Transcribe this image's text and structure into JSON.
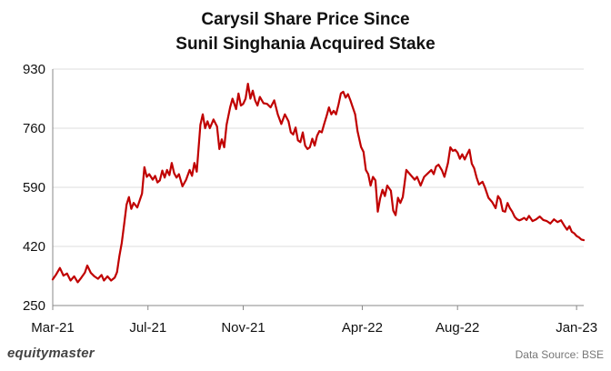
{
  "chart_data": {
    "type": "line",
    "title": [
      "Carysil Share Price Since",
      "Sunil Singhania Acquired Stake"
    ],
    "xlabel": "",
    "ylabel": "",
    "ylim": [
      250,
      930
    ],
    "yticks": [
      250,
      420,
      590,
      760,
      930
    ],
    "xticks": [
      {
        "label": "Mar-21",
        "month": 0
      },
      {
        "label": "Jul-21",
        "month": 4
      },
      {
        "label": "Nov-21",
        "month": 8
      },
      {
        "label": "Apr-22",
        "month": 13
      },
      {
        "label": "Aug-22",
        "month": 17
      },
      {
        "label": "Jan-23",
        "month": 22
      }
    ],
    "xrange_months": [
      0,
      22.3
    ],
    "series": [
      {
        "name": "Carysil Share Price",
        "color": "#c00000",
        "points": [
          [
            0.0,
            325
          ],
          [
            0.15,
            340
          ],
          [
            0.3,
            358
          ],
          [
            0.45,
            336
          ],
          [
            0.6,
            342
          ],
          [
            0.75,
            322
          ],
          [
            0.9,
            334
          ],
          [
            1.05,
            317
          ],
          [
            1.2,
            330
          ],
          [
            1.35,
            345
          ],
          [
            1.45,
            365
          ],
          [
            1.6,
            344
          ],
          [
            1.75,
            334
          ],
          [
            1.9,
            327
          ],
          [
            2.05,
            338
          ],
          [
            2.15,
            322
          ],
          [
            2.3,
            334
          ],
          [
            2.45,
            322
          ],
          [
            2.6,
            330
          ],
          [
            2.7,
            346
          ],
          [
            2.8,
            392
          ],
          [
            2.9,
            430
          ],
          [
            3.0,
            485
          ],
          [
            3.1,
            540
          ],
          [
            3.2,
            562
          ],
          [
            3.3,
            528
          ],
          [
            3.4,
            545
          ],
          [
            3.55,
            532
          ],
          [
            3.65,
            552
          ],
          [
            3.75,
            572
          ],
          [
            3.85,
            648
          ],
          [
            3.95,
            620
          ],
          [
            4.05,
            628
          ],
          [
            4.2,
            612
          ],
          [
            4.3,
            623
          ],
          [
            4.4,
            604
          ],
          [
            4.5,
            610
          ],
          [
            4.6,
            638
          ],
          [
            4.7,
            618
          ],
          [
            4.8,
            640
          ],
          [
            4.9,
            625
          ],
          [
            5.0,
            660
          ],
          [
            5.1,
            630
          ],
          [
            5.2,
            618
          ],
          [
            5.3,
            628
          ],
          [
            5.45,
            593
          ],
          [
            5.6,
            612
          ],
          [
            5.75,
            640
          ],
          [
            5.85,
            623
          ],
          [
            5.95,
            660
          ],
          [
            6.05,
            635
          ],
          [
            6.2,
            770
          ],
          [
            6.3,
            800
          ],
          [
            6.4,
            760
          ],
          [
            6.5,
            780
          ],
          [
            6.6,
            760
          ],
          [
            6.75,
            785
          ],
          [
            6.9,
            765
          ],
          [
            7.0,
            700
          ],
          [
            7.1,
            728
          ],
          [
            7.2,
            705
          ],
          [
            7.3,
            770
          ],
          [
            7.45,
            820
          ],
          [
            7.55,
            845
          ],
          [
            7.7,
            815
          ],
          [
            7.8,
            860
          ],
          [
            7.9,
            825
          ],
          [
            8.0,
            830
          ],
          [
            8.1,
            845
          ],
          [
            8.2,
            888
          ],
          [
            8.3,
            845
          ],
          [
            8.4,
            868
          ],
          [
            8.5,
            840
          ],
          [
            8.6,
            825
          ],
          [
            8.7,
            850
          ],
          [
            8.85,
            832
          ],
          [
            9.0,
            830
          ],
          [
            9.15,
            820
          ],
          [
            9.3,
            840
          ],
          [
            9.45,
            800
          ],
          [
            9.6,
            772
          ],
          [
            9.75,
            800
          ],
          [
            9.9,
            780
          ],
          [
            10.0,
            748
          ],
          [
            10.1,
            742
          ],
          [
            10.2,
            762
          ],
          [
            10.3,
            725
          ],
          [
            10.4,
            720
          ],
          [
            10.5,
            748
          ],
          [
            10.6,
            710
          ],
          [
            10.7,
            700
          ],
          [
            10.8,
            705
          ],
          [
            10.9,
            730
          ],
          [
            11.0,
            710
          ],
          [
            11.1,
            738
          ],
          [
            11.2,
            752
          ],
          [
            11.3,
            748
          ],
          [
            11.4,
            772
          ],
          [
            11.5,
            795
          ],
          [
            11.6,
            820
          ],
          [
            11.7,
            800
          ],
          [
            11.8,
            810
          ],
          [
            11.9,
            800
          ],
          [
            12.0,
            828
          ],
          [
            12.1,
            860
          ],
          [
            12.2,
            865
          ],
          [
            12.3,
            848
          ],
          [
            12.4,
            858
          ],
          [
            12.5,
            840
          ],
          [
            12.6,
            820
          ],
          [
            12.7,
            800
          ],
          [
            12.8,
            752
          ],
          [
            12.95,
            706
          ],
          [
            13.05,
            692
          ],
          [
            13.15,
            640
          ],
          [
            13.25,
            628
          ],
          [
            13.35,
            595
          ],
          [
            13.45,
            620
          ],
          [
            13.55,
            610
          ],
          [
            13.65,
            520
          ],
          [
            13.75,
            558
          ],
          [
            13.85,
            583
          ],
          [
            13.95,
            565
          ],
          [
            14.05,
            595
          ],
          [
            14.2,
            580
          ],
          [
            14.3,
            523
          ],
          [
            14.4,
            510
          ],
          [
            14.5,
            560
          ],
          [
            14.6,
            545
          ],
          [
            14.7,
            562
          ],
          [
            14.85,
            640
          ],
          [
            15.0,
            628
          ],
          [
            15.1,
            620
          ],
          [
            15.2,
            612
          ],
          [
            15.3,
            620
          ],
          [
            15.45,
            595
          ],
          [
            15.6,
            620
          ],
          [
            15.75,
            630
          ],
          [
            15.9,
            640
          ],
          [
            16.0,
            628
          ],
          [
            16.1,
            650
          ],
          [
            16.2,
            655
          ],
          [
            16.35,
            638
          ],
          [
            16.45,
            620
          ],
          [
            16.6,
            660
          ],
          [
            16.7,
            705
          ],
          [
            16.8,
            695
          ],
          [
            16.9,
            698
          ],
          [
            17.0,
            690
          ],
          [
            17.1,
            672
          ],
          [
            17.2,
            685
          ],
          [
            17.3,
            670
          ],
          [
            17.4,
            685
          ],
          [
            17.5,
            698
          ],
          [
            17.6,
            658
          ],
          [
            17.7,
            645
          ],
          [
            17.8,
            618
          ],
          [
            17.9,
            598
          ],
          [
            18.05,
            606
          ],
          [
            18.15,
            590
          ],
          [
            18.3,
            560
          ],
          [
            18.45,
            548
          ],
          [
            18.6,
            530
          ],
          [
            18.7,
            565
          ],
          [
            18.8,
            555
          ],
          [
            18.9,
            522
          ],
          [
            19.0,
            520
          ],
          [
            19.1,
            545
          ],
          [
            19.2,
            530
          ],
          [
            19.3,
            520
          ],
          [
            19.4,
            505
          ],
          [
            19.5,
            498
          ],
          [
            19.6,
            495
          ],
          [
            19.7,
            498
          ],
          [
            19.8,
            502
          ],
          [
            19.9,
            496
          ],
          [
            20.0,
            508
          ],
          [
            20.15,
            493
          ],
          [
            20.3,
            498
          ],
          [
            20.45,
            506
          ],
          [
            20.6,
            496
          ],
          [
            20.75,
            493
          ],
          [
            20.9,
            486
          ],
          [
            21.05,
            498
          ],
          [
            21.2,
            490
          ],
          [
            21.35,
            495
          ],
          [
            21.5,
            478
          ],
          [
            21.6,
            468
          ],
          [
            21.7,
            478
          ],
          [
            21.8,
            462
          ],
          [
            21.9,
            458
          ],
          [
            22.0,
            450
          ],
          [
            22.1,
            446
          ],
          [
            22.2,
            440
          ],
          [
            22.3,
            438
          ]
        ]
      }
    ]
  },
  "branding": {
    "logo": "equitymaster",
    "source": "Data Source: BSE"
  }
}
